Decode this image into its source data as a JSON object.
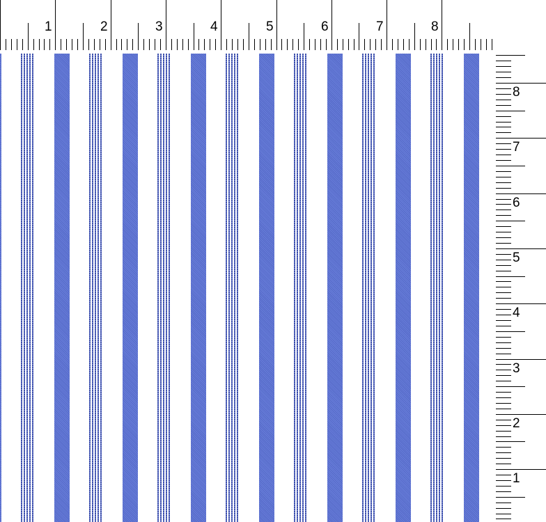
{
  "top_ruler": {
    "labels": [
      "1",
      "2",
      "3",
      "4",
      "5",
      "6",
      "7",
      "8"
    ]
  },
  "side_ruler": {
    "labels": [
      "8",
      "7",
      "6",
      "5",
      "4",
      "3",
      "2",
      "1"
    ]
  },
  "pattern": {
    "type": "vertical stripes",
    "colors": {
      "band": "#5a70cc",
      "thin_line": "#3c4ea8",
      "background": "#ffffff"
    }
  }
}
